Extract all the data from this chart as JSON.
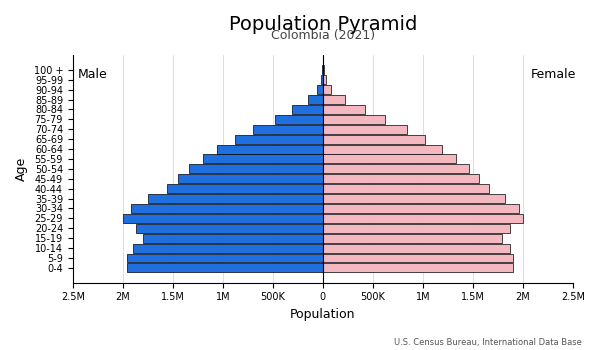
{
  "title": "Population Pyramid",
  "subtitle": "Colombia (2021)",
  "xlabel": "Population",
  "ylabel": "Age",
  "source": "U.S. Census Bureau, International Data Base",
  "male_label": "Male",
  "female_label": "Female",
  "age_groups": [
    "0-4",
    "5-9",
    "10-14",
    "15-19",
    "20-24",
    "25-29",
    "30-34",
    "35-39",
    "40-44",
    "45-49",
    "50-54",
    "55-59",
    "60-64",
    "65-69",
    "70-74",
    "75-79",
    "80-84",
    "85-89",
    "90-94",
    "95-99",
    "100 +"
  ],
  "male_values": [
    1960000,
    1960000,
    1900000,
    1800000,
    1870000,
    2000000,
    1920000,
    1750000,
    1560000,
    1450000,
    1340000,
    1200000,
    1060000,
    880000,
    700000,
    480000,
    310000,
    150000,
    55000,
    18000,
    5000
  ],
  "female_values": [
    1900000,
    1900000,
    1870000,
    1790000,
    1870000,
    2000000,
    1960000,
    1820000,
    1660000,
    1560000,
    1460000,
    1330000,
    1190000,
    1020000,
    840000,
    620000,
    420000,
    220000,
    85000,
    28000,
    8000
  ],
  "male_color": "#1f6fde",
  "female_color": "#f4b8c1",
  "bar_edge_color": "#000000",
  "bar_linewidth": 0.5,
  "xlim": 2500000,
  "background_color": "#ffffff",
  "grid_color": "#d0d0d0",
  "title_fontsize": 14,
  "subtitle_fontsize": 9,
  "label_fontsize": 9,
  "tick_fontsize": 7,
  "side_label_fontsize": 9
}
